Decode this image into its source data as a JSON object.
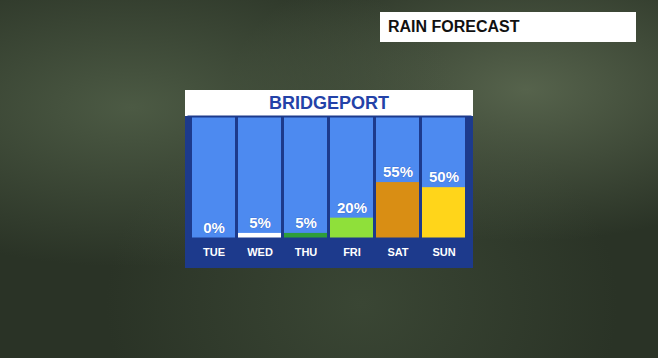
{
  "header": {
    "title": "RAIN FORECAST"
  },
  "chart_data": {
    "type": "bar",
    "title": "BRIDGEPORT",
    "categories": [
      "TUE",
      "WED",
      "THU",
      "FRI",
      "SAT",
      "SUN"
    ],
    "values": [
      0,
      5,
      5,
      20,
      55,
      50
    ],
    "value_labels": [
      "0%",
      "5%",
      "5%",
      "20%",
      "55%",
      "50%"
    ],
    "colors": [
      "#ffffff",
      "#ffffff",
      "#2e9e3a",
      "#8fe03a",
      "#d98e14",
      "#ffd51a"
    ],
    "ylim": [
      0,
      120
    ],
    "yticks": [],
    "data_labels": true,
    "tick_labels": "x",
    "grid": false
  }
}
